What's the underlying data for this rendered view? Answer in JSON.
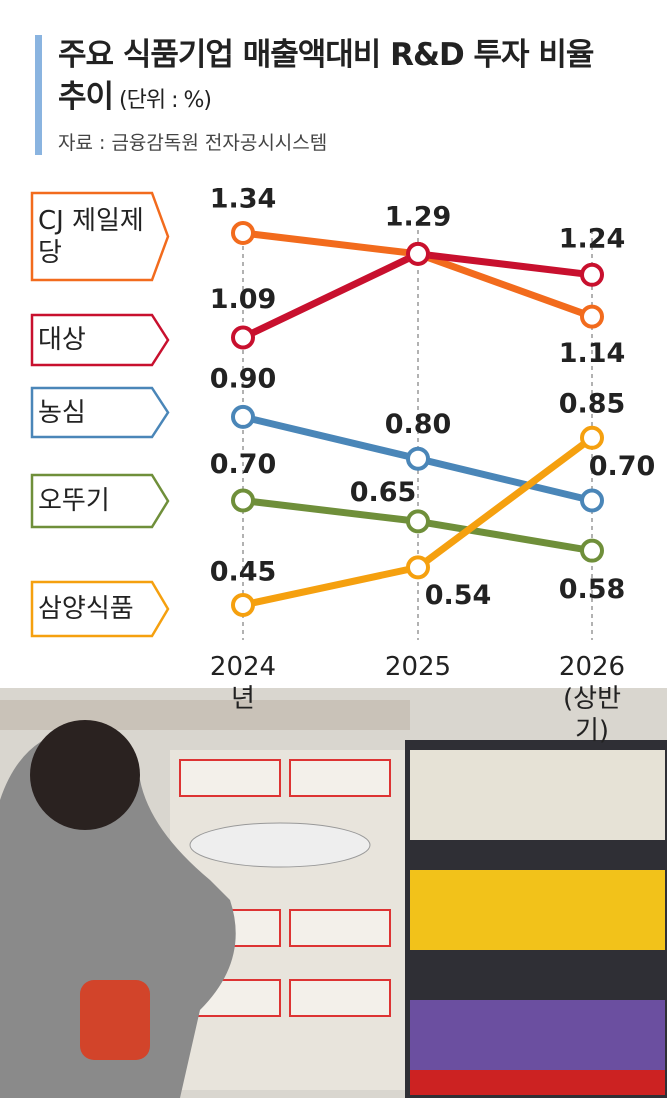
{
  "chart_data": {
    "type": "line",
    "title": "주요 식품기업 매출액대비 R&D 투자 비율 추이",
    "subtitle": "(단위 : %)",
    "source": "자료 : 금융감독원 전자공시시스템",
    "categories": [
      "2024년",
      "2025",
      "2026 (상반기)"
    ],
    "series": [
      {
        "name": "CJ 제일제당",
        "color": "#f26b1d",
        "values": [
          1.34,
          1.29,
          1.14
        ],
        "value_labels": [
          "1.34",
          "1.29",
          "1.14"
        ]
      },
      {
        "name": "대상",
        "color": "#c8102e",
        "values": [
          1.09,
          1.29,
          1.24
        ],
        "value_labels": [
          "1.09",
          null,
          "1.24"
        ]
      },
      {
        "name": "농심",
        "color": "#4a86b8",
        "values": [
          0.9,
          0.8,
          0.7
        ],
        "value_labels": [
          "0.90",
          "0.80",
          "0.70"
        ]
      },
      {
        "name": "오뚜기",
        "color": "#6f8f3a",
        "values": [
          0.7,
          0.65,
          0.58
        ],
        "value_labels": [
          "0.70",
          "0.65",
          "0.58"
        ]
      },
      {
        "name": "삼양식품",
        "color": "#f5a00f",
        "values": [
          0.45,
          0.54,
          0.85
        ],
        "value_labels": [
          "0.45",
          "0.54",
          "0.85"
        ]
      }
    ]
  }
}
